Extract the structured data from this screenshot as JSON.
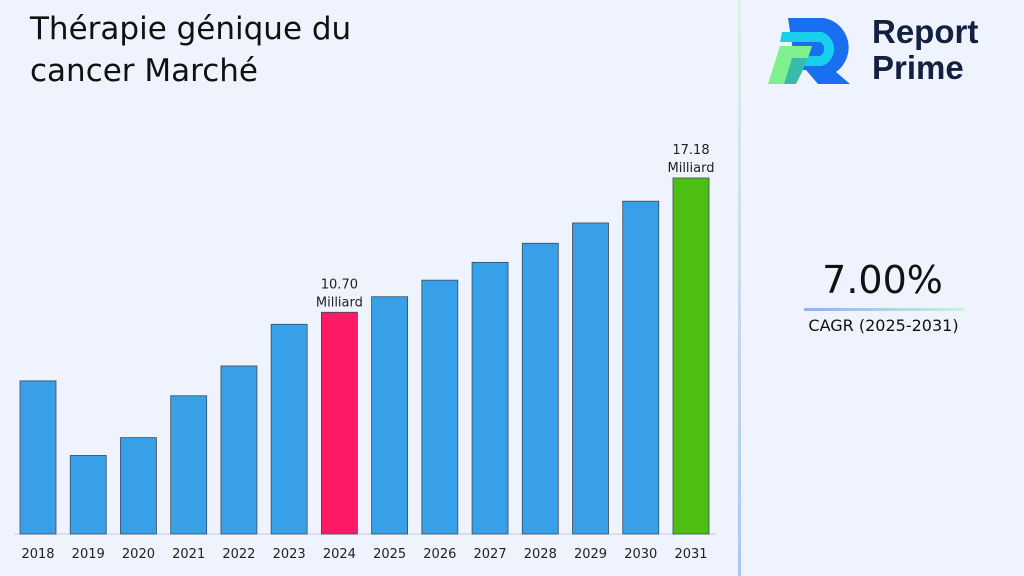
{
  "title": "Thérapie génique du cancer Marché",
  "logo": {
    "line1": "Report",
    "line2": "Prime"
  },
  "cagr": {
    "value": "7.00%",
    "label": "CAGR (2025-2031)"
  },
  "colors": {
    "default_bar": "#38a0e8",
    "highlight_2024": "#ff1a66",
    "highlight_2031": "#4cbf12"
  },
  "chart_data": {
    "type": "bar",
    "title": "Thérapie génique du cancer Marché",
    "categories": [
      "2018",
      "2019",
      "2020",
      "2021",
      "2022",
      "2023",
      "2024",
      "2025",
      "2026",
      "2027",
      "2028",
      "2029",
      "2030",
      "2031"
    ],
    "values": [
      7.39,
      3.79,
      4.65,
      6.67,
      8.11,
      10.12,
      10.7,
      11.45,
      12.25,
      13.11,
      14.03,
      15.01,
      16.06,
      17.18
    ],
    "unit": "Milliard",
    "data_labels": [
      {
        "category": "2024",
        "value": "10.70",
        "unit": "Milliard"
      },
      {
        "category": "2031",
        "value": "17.18",
        "unit": "Milliard"
      }
    ],
    "ylim": [
      0,
      17.18
    ],
    "grid": false,
    "legend": "none"
  }
}
